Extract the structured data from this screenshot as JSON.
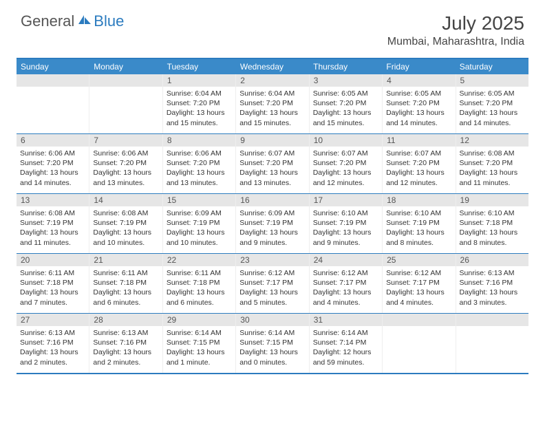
{
  "logo": {
    "part1": "General",
    "part2": "Blue"
  },
  "title": "July 2025",
  "location": "Mumbai, Maharashtra, India",
  "colors": {
    "header_bar": "#3a8ac9",
    "accent": "#2b7bbf",
    "daynum_bg": "#e6e6e6",
    "text": "#333333",
    "logo_gray": "#555555",
    "logo_blue": "#2b7bbf",
    "white": "#ffffff"
  },
  "weekdays": [
    "Sunday",
    "Monday",
    "Tuesday",
    "Wednesday",
    "Thursday",
    "Friday",
    "Saturday"
  ],
  "weeks": [
    [
      null,
      null,
      {
        "n": "1",
        "sr": "6:04 AM",
        "ss": "7:20 PM",
        "dl": "13 hours and 15 minutes."
      },
      {
        "n": "2",
        "sr": "6:04 AM",
        "ss": "7:20 PM",
        "dl": "13 hours and 15 minutes."
      },
      {
        "n": "3",
        "sr": "6:05 AM",
        "ss": "7:20 PM",
        "dl": "13 hours and 15 minutes."
      },
      {
        "n": "4",
        "sr": "6:05 AM",
        "ss": "7:20 PM",
        "dl": "13 hours and 14 minutes."
      },
      {
        "n": "5",
        "sr": "6:05 AM",
        "ss": "7:20 PM",
        "dl": "13 hours and 14 minutes."
      }
    ],
    [
      {
        "n": "6",
        "sr": "6:06 AM",
        "ss": "7:20 PM",
        "dl": "13 hours and 14 minutes."
      },
      {
        "n": "7",
        "sr": "6:06 AM",
        "ss": "7:20 PM",
        "dl": "13 hours and 13 minutes."
      },
      {
        "n": "8",
        "sr": "6:06 AM",
        "ss": "7:20 PM",
        "dl": "13 hours and 13 minutes."
      },
      {
        "n": "9",
        "sr": "6:07 AM",
        "ss": "7:20 PM",
        "dl": "13 hours and 13 minutes."
      },
      {
        "n": "10",
        "sr": "6:07 AM",
        "ss": "7:20 PM",
        "dl": "13 hours and 12 minutes."
      },
      {
        "n": "11",
        "sr": "6:07 AM",
        "ss": "7:20 PM",
        "dl": "13 hours and 12 minutes."
      },
      {
        "n": "12",
        "sr": "6:08 AM",
        "ss": "7:20 PM",
        "dl": "13 hours and 11 minutes."
      }
    ],
    [
      {
        "n": "13",
        "sr": "6:08 AM",
        "ss": "7:19 PM",
        "dl": "13 hours and 11 minutes."
      },
      {
        "n": "14",
        "sr": "6:08 AM",
        "ss": "7:19 PM",
        "dl": "13 hours and 10 minutes."
      },
      {
        "n": "15",
        "sr": "6:09 AM",
        "ss": "7:19 PM",
        "dl": "13 hours and 10 minutes."
      },
      {
        "n": "16",
        "sr": "6:09 AM",
        "ss": "7:19 PM",
        "dl": "13 hours and 9 minutes."
      },
      {
        "n": "17",
        "sr": "6:10 AM",
        "ss": "7:19 PM",
        "dl": "13 hours and 9 minutes."
      },
      {
        "n": "18",
        "sr": "6:10 AM",
        "ss": "7:19 PM",
        "dl": "13 hours and 8 minutes."
      },
      {
        "n": "19",
        "sr": "6:10 AM",
        "ss": "7:18 PM",
        "dl": "13 hours and 8 minutes."
      }
    ],
    [
      {
        "n": "20",
        "sr": "6:11 AM",
        "ss": "7:18 PM",
        "dl": "13 hours and 7 minutes."
      },
      {
        "n": "21",
        "sr": "6:11 AM",
        "ss": "7:18 PM",
        "dl": "13 hours and 6 minutes."
      },
      {
        "n": "22",
        "sr": "6:11 AM",
        "ss": "7:18 PM",
        "dl": "13 hours and 6 minutes."
      },
      {
        "n": "23",
        "sr": "6:12 AM",
        "ss": "7:17 PM",
        "dl": "13 hours and 5 minutes."
      },
      {
        "n": "24",
        "sr": "6:12 AM",
        "ss": "7:17 PM",
        "dl": "13 hours and 4 minutes."
      },
      {
        "n": "25",
        "sr": "6:12 AM",
        "ss": "7:17 PM",
        "dl": "13 hours and 4 minutes."
      },
      {
        "n": "26",
        "sr": "6:13 AM",
        "ss": "7:16 PM",
        "dl": "13 hours and 3 minutes."
      }
    ],
    [
      {
        "n": "27",
        "sr": "6:13 AM",
        "ss": "7:16 PM",
        "dl": "13 hours and 2 minutes."
      },
      {
        "n": "28",
        "sr": "6:13 AM",
        "ss": "7:16 PM",
        "dl": "13 hours and 2 minutes."
      },
      {
        "n": "29",
        "sr": "6:14 AM",
        "ss": "7:15 PM",
        "dl": "13 hours and 1 minute."
      },
      {
        "n": "30",
        "sr": "6:14 AM",
        "ss": "7:15 PM",
        "dl": "13 hours and 0 minutes."
      },
      {
        "n": "31",
        "sr": "6:14 AM",
        "ss": "7:14 PM",
        "dl": "12 hours and 59 minutes."
      },
      null,
      null
    ]
  ],
  "labels": {
    "sunrise": "Sunrise:",
    "sunset": "Sunset:",
    "daylight": "Daylight:"
  }
}
